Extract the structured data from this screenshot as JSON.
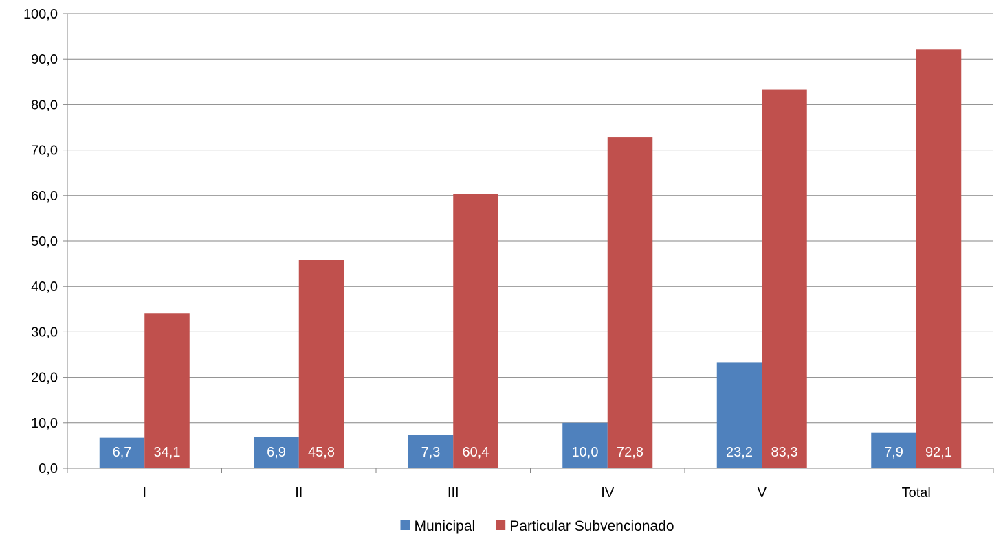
{
  "chart_data": {
    "type": "bar",
    "title": "",
    "xlabel": "",
    "ylabel": "",
    "categories": [
      "I",
      "II",
      "III",
      "IV",
      "V",
      "Total"
    ],
    "series": [
      {
        "name": "Municipal",
        "color": "#4F81BD",
        "values": [
          6.7,
          6.9,
          7.3,
          10.0,
          23.2,
          7.9
        ],
        "labels": [
          "6,7",
          "6,9",
          "7,3",
          "10,0",
          "23,2",
          "7,9"
        ]
      },
      {
        "name": "Particular Subvencionado",
        "color": "#C0504D",
        "values": [
          34.1,
          45.8,
          60.4,
          72.8,
          83.3,
          92.1
        ],
        "labels": [
          "34,1",
          "45,8",
          "60,4",
          "72,8",
          "83,3",
          "92,1"
        ]
      }
    ],
    "ylim": [
      0,
      100
    ],
    "yticks": [
      0,
      10,
      20,
      30,
      40,
      50,
      60,
      70,
      80,
      90,
      100
    ],
    "ytick_labels": [
      "0,0",
      "10,0",
      "20,0",
      "30,0",
      "40,0",
      "50,0",
      "60,0",
      "70,0",
      "80,0",
      "90,0",
      "100,0"
    ],
    "grid": true,
    "legend_position": "bottom-center",
    "data_label_color": "#ffffff",
    "axis_color": "#868686",
    "text_color": "#000000"
  }
}
